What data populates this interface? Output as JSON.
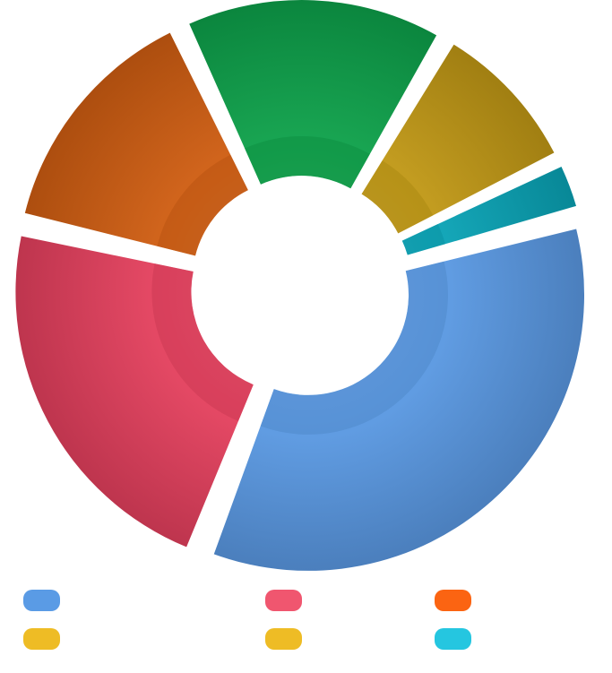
{
  "chart_data": {
    "type": "pie",
    "variant": "exploded-donut",
    "title": "",
    "slices": [
      {
        "label": "",
        "value": 34.0,
        "color": "#5b9be6"
      },
      {
        "label": "",
        "value": 22.0,
        "color": "#e8415f"
      },
      {
        "label": "",
        "value": 14.0,
        "color": "#d35f12"
      },
      {
        "label": "",
        "value": 15.0,
        "color": "#0ea34b"
      },
      {
        "label": "",
        "value": 9.0,
        "color": "#c49b16"
      },
      {
        "label": "",
        "value": 3.0,
        "color": "#0aa6b8"
      }
    ],
    "legend": {
      "placement": "bottom",
      "items": [
        {
          "label": "",
          "color": "#5a9be5"
        },
        {
          "label": "",
          "color": "#f0566f"
        },
        {
          "label": "",
          "color": "#fb6412"
        },
        {
          "label": "",
          "color": "#eebc25"
        },
        {
          "label": "",
          "color": "#eebc25"
        },
        {
          "label": "",
          "color": "#25c6e0"
        }
      ]
    }
  }
}
